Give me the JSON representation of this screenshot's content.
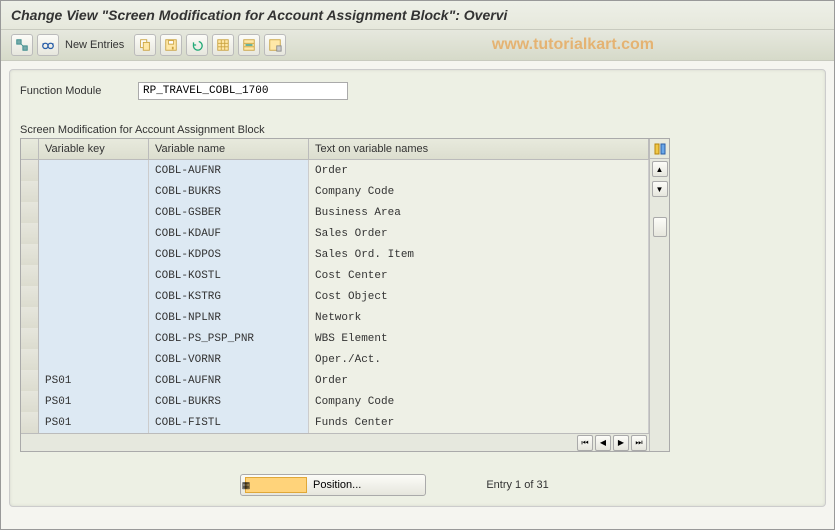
{
  "window": {
    "title": "Change View \"Screen Modification for Account Assignment Block\": Overvi"
  },
  "toolbar": {
    "new_entries": "New Entries",
    "watermark": "www.tutorialkart.com"
  },
  "function_module": {
    "label": "Function Module",
    "value": "RP_TRAVEL_COBL_1700"
  },
  "section": {
    "title": "Screen Modification for Account Assignment Block",
    "columns": {
      "key": "Variable key",
      "name": "Variable name",
      "text": "Text on variable names"
    },
    "rows": [
      {
        "key": "",
        "name": "COBL-AUFNR",
        "text": "Order"
      },
      {
        "key": "",
        "name": "COBL-BUKRS",
        "text": "Company Code"
      },
      {
        "key": "",
        "name": "COBL-GSBER",
        "text": "Business Area"
      },
      {
        "key": "",
        "name": "COBL-KDAUF",
        "text": "Sales Order"
      },
      {
        "key": "",
        "name": "COBL-KDPOS",
        "text": "Sales Ord. Item"
      },
      {
        "key": "",
        "name": "COBL-KOSTL",
        "text": "Cost Center"
      },
      {
        "key": "",
        "name": "COBL-KSTRG",
        "text": "Cost Object"
      },
      {
        "key": "",
        "name": "COBL-NPLNR",
        "text": "Network"
      },
      {
        "key": "",
        "name": "COBL-PS_PSP_PNR",
        "text": "WBS Element"
      },
      {
        "key": "",
        "name": "COBL-VORNR",
        "text": "Oper./Act."
      },
      {
        "key": "PS01",
        "name": "COBL-AUFNR",
        "text": "Order"
      },
      {
        "key": "PS01",
        "name": "COBL-BUKRS",
        "text": "Company Code"
      },
      {
        "key": "PS01",
        "name": "COBL-FISTL",
        "text": "Funds Center"
      }
    ]
  },
  "footer": {
    "position_label": "Position...",
    "entry_text": "Entry 1 of 31"
  },
  "colors": {
    "bg": "#f5f5f0",
    "content_bg": "#edf0e4",
    "header_grad_top": "#eef0e8",
    "header_grad_bot": "#e6e8dc",
    "blue_cell": "#dde9f3",
    "row_bg": "#eef0e6"
  }
}
